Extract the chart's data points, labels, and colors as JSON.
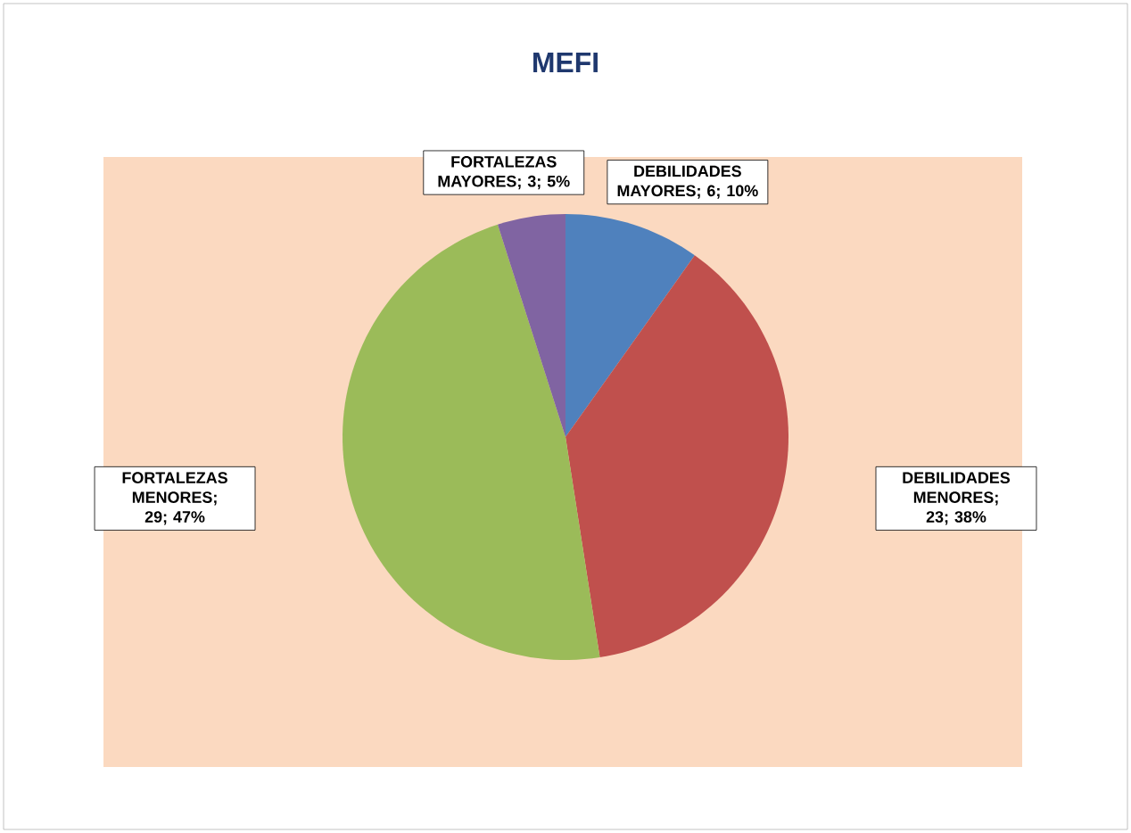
{
  "chart_data": {
    "type": "pie",
    "title": "MEFI",
    "values": [
      6,
      23,
      29,
      3
    ],
    "colors": [
      "#4f81bd",
      "#c0504d",
      "#9bbb59",
      "#8064a2"
    ],
    "value_labels": [
      "DEBILIDADES MAYORES; 6; 10%",
      "DEBILIDADES MENORES; 23; 38%",
      "FORTALEZAS MENORES; 29; 47%",
      "FORTALEZAS MAYORES; 3; 5%"
    ]
  }
}
